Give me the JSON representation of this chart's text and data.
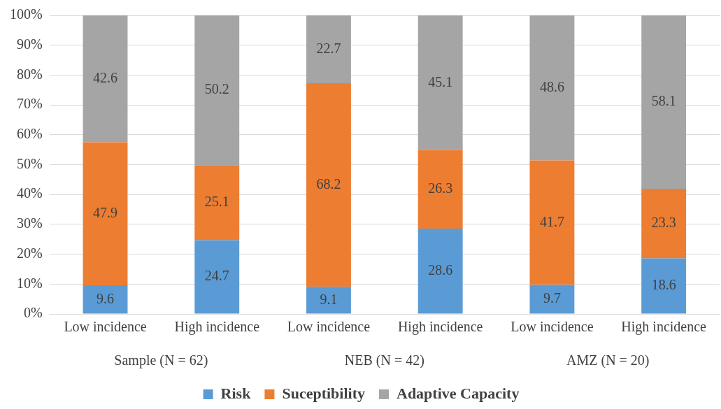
{
  "chart_data": {
    "type": "bar",
    "stacked": true,
    "categories": [
      "Low incidence",
      "High incidence",
      "Low incidence",
      "High incidence",
      "Low incidence",
      "High incidence"
    ],
    "series": [
      {
        "name": "Risk",
        "color": "#5b9bd5",
        "values": [
          9.6,
          24.7,
          9.1,
          28.6,
          9.7,
          18.6
        ]
      },
      {
        "name": "Suceptibility",
        "color": "#ed7d31",
        "values": [
          47.9,
          25.1,
          68.2,
          26.3,
          41.7,
          23.3
        ]
      },
      {
        "name": "Adaptive Capacity",
        "color": "#a5a5a5",
        "values": [
          42.6,
          50.2,
          22.7,
          45.1,
          48.6,
          58.1
        ]
      }
    ],
    "ylim": [
      0,
      100
    ],
    "yticks": [
      {
        "value": 0,
        "label": "0%"
      },
      {
        "value": 10,
        "label": "10%"
      },
      {
        "value": 20,
        "label": "20%"
      },
      {
        "value": 30,
        "label": "30%"
      },
      {
        "value": 40,
        "label": "40%"
      },
      {
        "value": 50,
        "label": "50%"
      },
      {
        "value": 60,
        "label": "60%"
      },
      {
        "value": 70,
        "label": "70%"
      },
      {
        "value": 80,
        "label": "80%"
      },
      {
        "value": 90,
        "label": "90%"
      },
      {
        "value": 100,
        "label": "100%"
      }
    ],
    "annotations": [
      "Sample (N = 62)",
      "NEB (N = 42)",
      "AMZ (N = 20)"
    ],
    "grid": "y",
    "legend": "bottom",
    "data_labels": true
  }
}
